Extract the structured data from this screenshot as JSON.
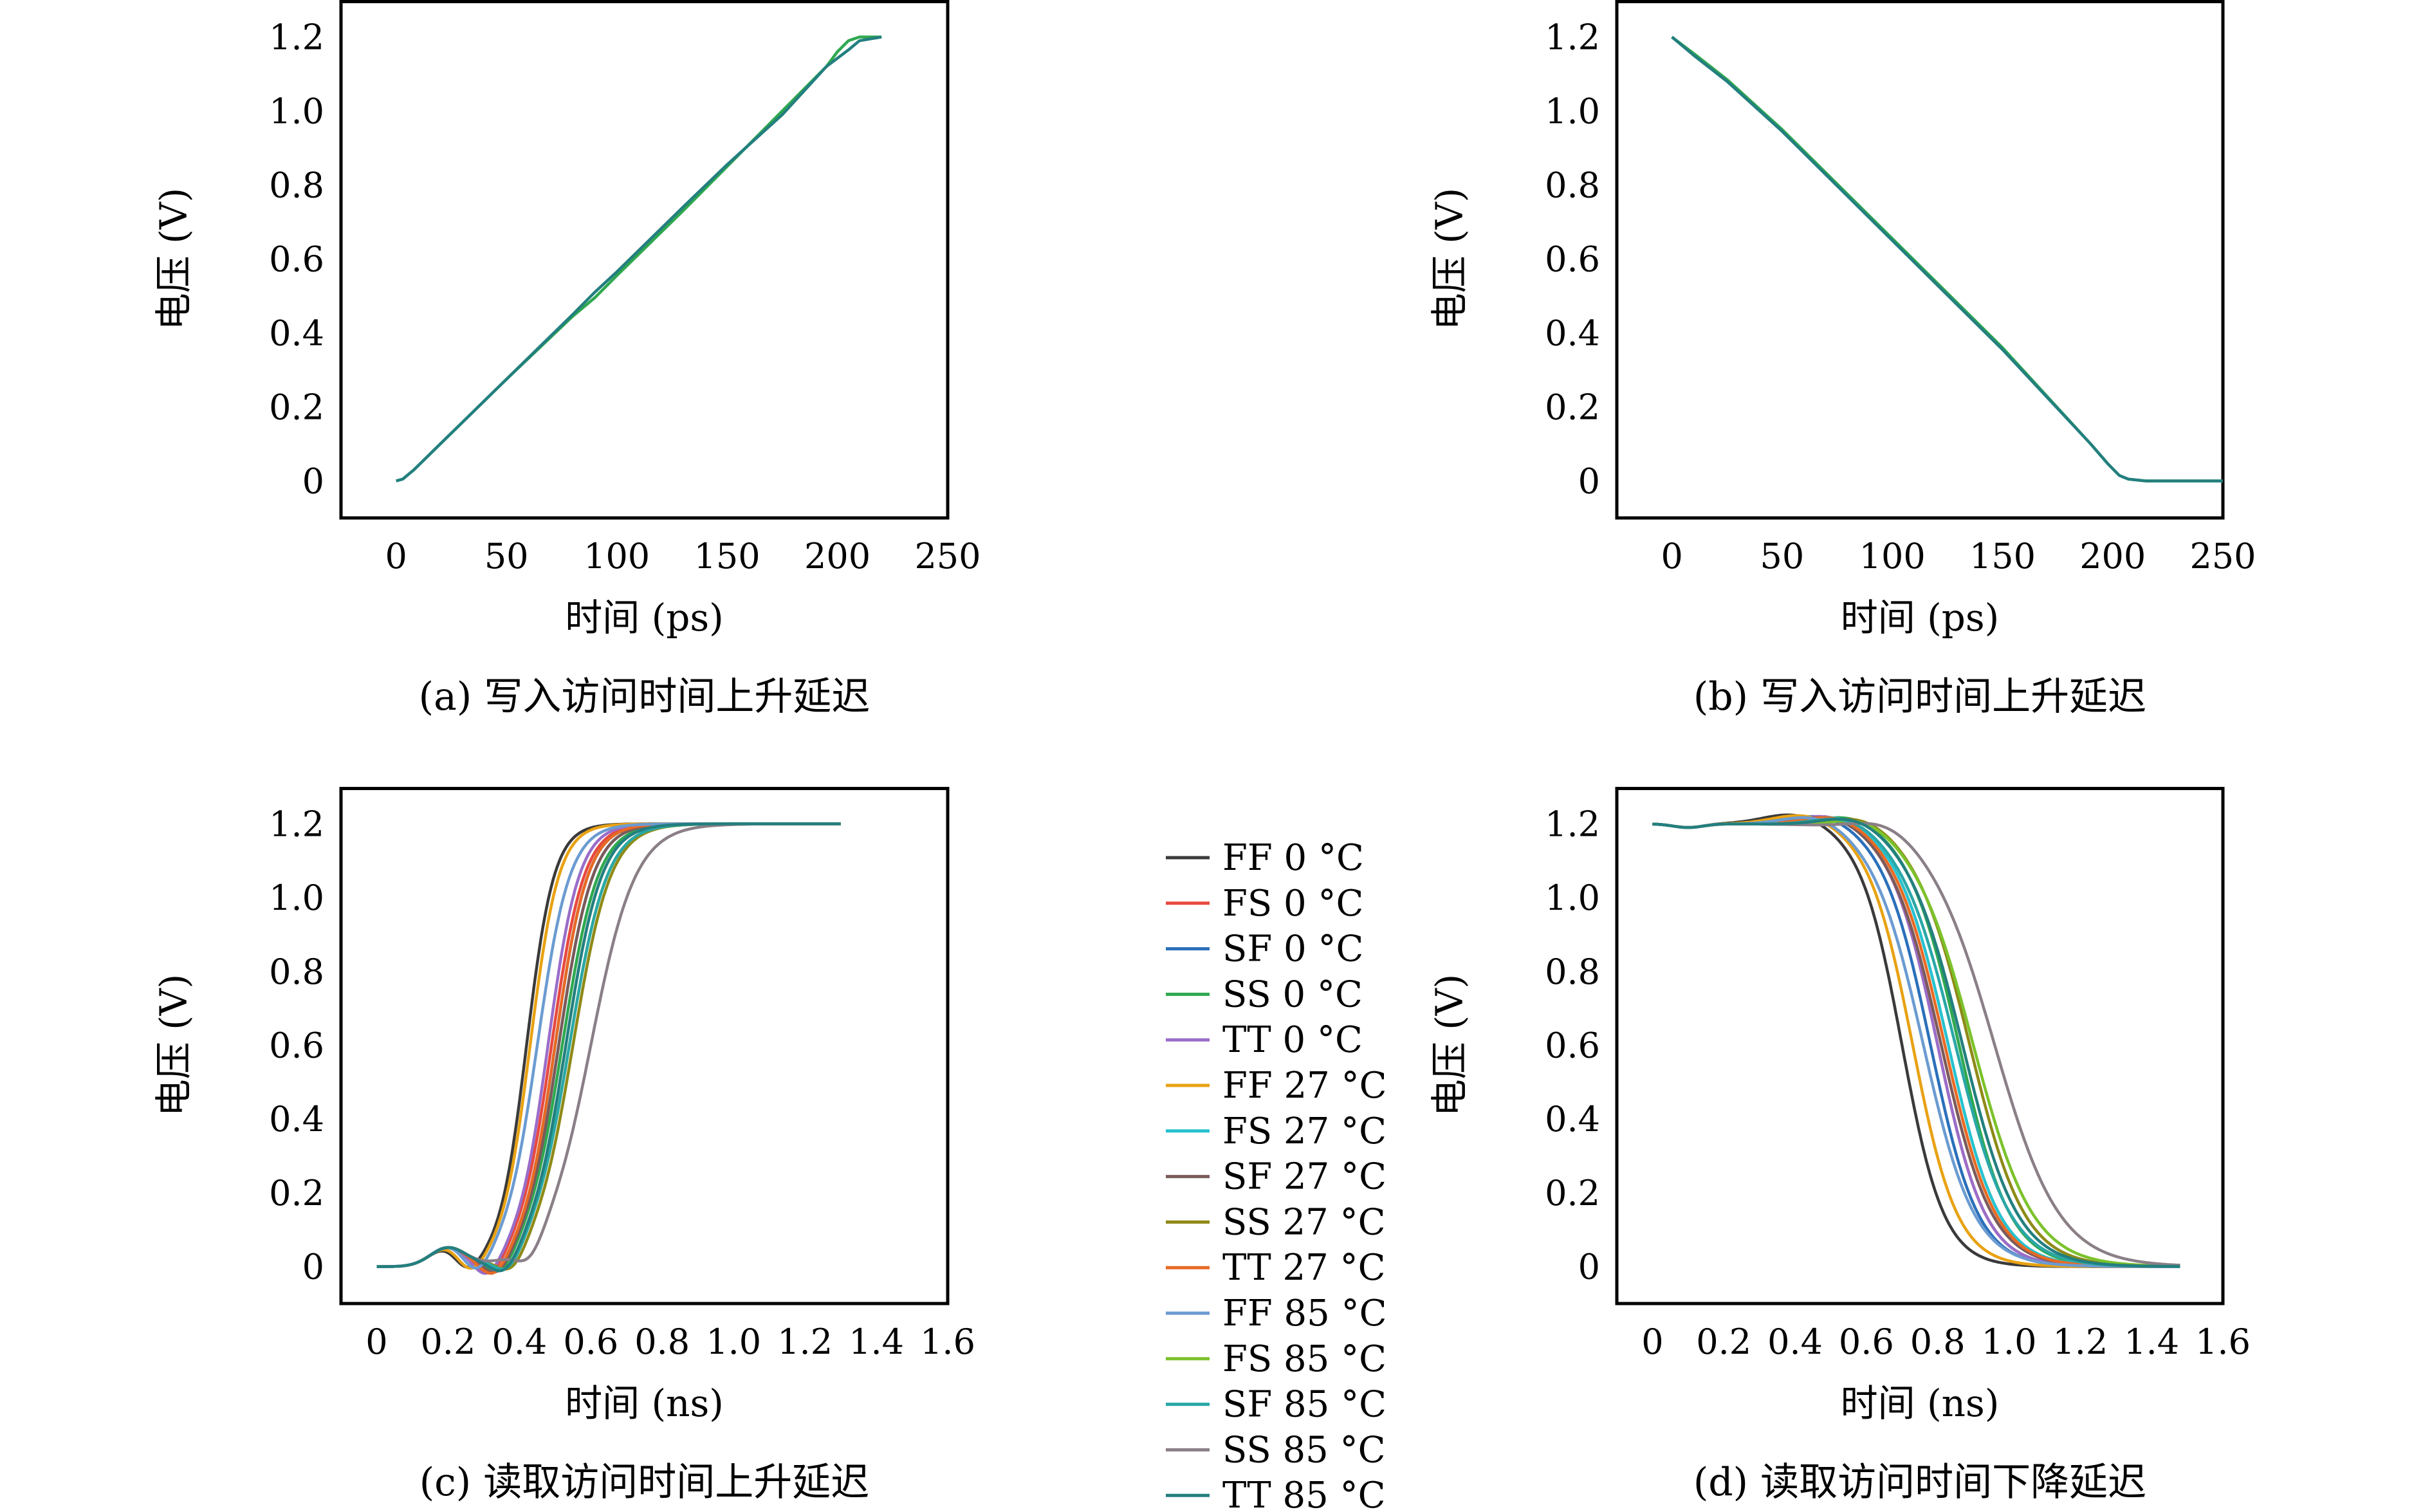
{
  "figure": {
    "legend_entries": [
      {
        "label": "FF 0 °C",
        "color": "#3a3a3a"
      },
      {
        "label": "FS 0 °C",
        "color": "#e8493f"
      },
      {
        "label": "SF 0 °C",
        "color": "#2b6fba"
      },
      {
        "label": "SS 0 °C",
        "color": "#2fa84f"
      },
      {
        "label": "TT 0 °C",
        "color": "#9a6dc9"
      },
      {
        "label": "FF 27 °C",
        "color": "#e8a213"
      },
      {
        "label": "FS 27 °C",
        "color": "#27c2cf"
      },
      {
        "label": "SF 27 °C",
        "color": "#7b5a5a"
      },
      {
        "label": "SS 27 °C",
        "color": "#8e8a18"
      },
      {
        "label": "TT 27 °C",
        "color": "#e86a24"
      },
      {
        "label": "FF 85 °C",
        "color": "#6b9bd1"
      },
      {
        "label": "FS 85 °C",
        "color": "#7cc22b"
      },
      {
        "label": "SF 85 °C",
        "color": "#2aa7a7"
      },
      {
        "label": "SS 85 °C",
        "color": "#8a7f87"
      },
      {
        "label": "TT 85 °C",
        "color": "#237f7f"
      }
    ]
  },
  "chart_data": [
    {
      "id": "a",
      "type": "line",
      "caption": "(a) 写入访问时间上升延迟",
      "xlabel": "时间 (ps)",
      "ylabel": "电压 (V)",
      "xlim": [
        -25,
        250
      ],
      "ylim": [
        -0.1,
        1.3
      ],
      "xticks": [
        0,
        50,
        100,
        150,
        200,
        250
      ],
      "xtick_labels": [
        "0",
        "50",
        "100",
        "150",
        "200",
        "250"
      ],
      "yticks": [
        0,
        0.2,
        0.4,
        0.6,
        0.8,
        1.0,
        1.2
      ],
      "ytick_labels": [
        "0",
        "0.2",
        "0.4",
        "0.6",
        "0.8",
        "1.0",
        "1.2"
      ],
      "series": [
        {
          "color": "#2fa84f",
          "x": [
            0,
            3,
            8,
            20,
            50,
            80,
            85,
            90,
            100,
            130,
            150,
            175,
            195,
            200,
            205,
            210,
            220
          ],
          "y": [
            0,
            0.005,
            0.03,
            0.1,
            0.275,
            0.445,
            0.47,
            0.495,
            0.555,
            0.73,
            0.85,
            1.0,
            1.12,
            1.16,
            1.19,
            1.2,
            1.2
          ]
        },
        {
          "color": "#237f7f",
          "x": [
            0,
            3,
            8,
            20,
            50,
            80,
            90,
            100,
            130,
            150,
            175,
            195,
            205,
            210,
            220
          ],
          "y": [
            0,
            0.005,
            0.03,
            0.1,
            0.275,
            0.45,
            0.51,
            0.565,
            0.74,
            0.855,
            0.99,
            1.12,
            1.165,
            1.19,
            1.2
          ]
        }
      ]
    },
    {
      "id": "b",
      "type": "line",
      "caption": "(b) 写入访问时间上升延迟",
      "xlabel": "时间 (ps)",
      "ylabel": "电压 (V)",
      "xlim": [
        -25,
        250
      ],
      "ylim": [
        -0.1,
        1.3
      ],
      "xticks": [
        0,
        50,
        100,
        150,
        200,
        250
      ],
      "xtick_labels": [
        "0",
        "50",
        "100",
        "150",
        "200",
        "250"
      ],
      "yticks": [
        0,
        0.2,
        0.4,
        0.6,
        0.8,
        1.0,
        1.2
      ],
      "ytick_labels": [
        "0",
        "0.2",
        "0.4",
        "0.6",
        "0.8",
        "1.0",
        "1.2"
      ],
      "series": [
        {
          "color": "#2fa84f",
          "x": [
            0,
            10,
            25,
            50,
            100,
            150,
            190,
            198,
            203,
            207,
            215,
            230,
            250
          ],
          "y": [
            1.2,
            1.155,
            1.085,
            0.95,
            0.655,
            0.36,
            0.1,
            0.045,
            0.015,
            0.005,
            0,
            0,
            0
          ]
        },
        {
          "color": "#237f7f",
          "x": [
            0,
            10,
            25,
            50,
            100,
            150,
            190,
            198,
            203,
            207,
            215,
            230,
            250
          ],
          "y": [
            1.2,
            1.15,
            1.08,
            0.945,
            0.65,
            0.355,
            0.1,
            0.045,
            0.015,
            0.005,
            0,
            0,
            0
          ]
        }
      ]
    },
    {
      "id": "c",
      "type": "line",
      "caption": "(c) 读取访问时间上升延迟",
      "xlabel": "时间 (ns)",
      "ylabel": "电压 (V)",
      "xlim": [
        -0.1,
        1.6
      ],
      "ylim": [
        -0.1,
        1.3
      ],
      "xticks": [
        0,
        0.2,
        0.4,
        0.6,
        0.8,
        1.0,
        1.2,
        1.4,
        1.6
      ],
      "xtick_labels": [
        "0",
        "0.2",
        "0.4",
        "0.6",
        "0.8",
        "1.0",
        "1.2",
        "1.4",
        "1.6"
      ],
      "yticks": [
        0,
        0.2,
        0.4,
        0.6,
        0.8,
        1.0,
        1.2
      ],
      "ytick_labels": [
        "0",
        "0.2",
        "0.4",
        "0.6",
        "0.8",
        "1.0",
        "1.2"
      ],
      "curve_model": "rising",
      "x_start": 0,
      "x_end": 1.3,
      "v_low": 0,
      "v_high": 1.2,
      "series": [
        {
          "name": "FF 0 °C",
          "color": "#3a3a3a",
          "t50": 0.42,
          "k": 26
        },
        {
          "name": "FS 0 °C",
          "color": "#e8493f",
          "t50": 0.49,
          "k": 22
        },
        {
          "name": "SF 0 °C",
          "color": "#2b6fba",
          "t50": 0.5,
          "k": 22
        },
        {
          "name": "SS 0 °C",
          "color": "#2fa84f",
          "t50": 0.52,
          "k": 20
        },
        {
          "name": "TT 0 °C",
          "color": "#9a6dc9",
          "t50": 0.48,
          "k": 23
        },
        {
          "name": "FF 27 °C",
          "color": "#e8a213",
          "t50": 0.43,
          "k": 25
        },
        {
          "name": "FS 27 °C",
          "color": "#27c2cf",
          "t50": 0.51,
          "k": 21
        },
        {
          "name": "SF 27 °C",
          "color": "#7b5a5a",
          "t50": 0.51,
          "k": 21
        },
        {
          "name": "SS 27 °C",
          "color": "#8e8a18",
          "t50": 0.55,
          "k": 19
        },
        {
          "name": "TT 27 °C",
          "color": "#e86a24",
          "t50": 0.5,
          "k": 22
        },
        {
          "name": "FF 85 °C",
          "color": "#6b9bd1",
          "t50": 0.45,
          "k": 22
        },
        {
          "name": "FS 85 °C",
          "color": "#7cc22b",
          "t50": 0.54,
          "k": 19
        },
        {
          "name": "SF 85 °C",
          "color": "#2aa7a7",
          "t50": 0.54,
          "k": 19
        },
        {
          "name": "SS 85 °C",
          "color": "#8a7f87",
          "t50": 0.6,
          "k": 16
        },
        {
          "name": "TT 85 °C",
          "color": "#237f7f",
          "t50": 0.53,
          "k": 20
        }
      ]
    },
    {
      "id": "d",
      "type": "line",
      "caption": "(d) 读取访问时间下降延迟",
      "xlabel": "时间 (ns)",
      "ylabel": "电压 (V)",
      "xlim": [
        -0.1,
        1.6
      ],
      "ylim": [
        -0.1,
        1.3
      ],
      "xticks": [
        0,
        0.2,
        0.4,
        0.6,
        0.8,
        1.0,
        1.2,
        1.4,
        1.6
      ],
      "xtick_labels": [
        "0",
        "0.2",
        "0.4",
        "0.6",
        "0.8",
        "1.0",
        "1.2",
        "1.4",
        "1.6"
      ],
      "yticks": [
        0,
        0.2,
        0.4,
        0.6,
        0.8,
        1.0,
        1.2
      ],
      "ytick_labels": [
        "0",
        "0.2",
        "0.4",
        "0.6",
        "0.8",
        "1.0",
        "1.2"
      ],
      "curve_model": "falling",
      "x_start": 0,
      "x_end": 1.48,
      "v_low": 0,
      "v_high": 1.2,
      "series": [
        {
          "name": "FF 0 °C",
          "color": "#3a3a3a",
          "t50": 0.7,
          "k": 17
        },
        {
          "name": "FS 0 °C",
          "color": "#e8493f",
          "t50": 0.8,
          "k": 15
        },
        {
          "name": "SF 0 °C",
          "color": "#2b6fba",
          "t50": 0.78,
          "k": 15
        },
        {
          "name": "SS 0 °C",
          "color": "#2fa84f",
          "t50": 0.86,
          "k": 14
        },
        {
          "name": "TT 0 °C",
          "color": "#9a6dc9",
          "t50": 0.8,
          "k": 15
        },
        {
          "name": "FF 27 °C",
          "color": "#e8a213",
          "t50": 0.73,
          "k": 16
        },
        {
          "name": "FS 27 °C",
          "color": "#27c2cf",
          "t50": 0.83,
          "k": 14
        },
        {
          "name": "SF 27 °C",
          "color": "#7b5a5a",
          "t50": 0.81,
          "k": 14
        },
        {
          "name": "SS 27 °C",
          "color": "#8e8a18",
          "t50": 0.89,
          "k": 13
        },
        {
          "name": "TT 27 °C",
          "color": "#e86a24",
          "t50": 0.82,
          "k": 14
        },
        {
          "name": "FF 85 °C",
          "color": "#6b9bd1",
          "t50": 0.76,
          "k": 14
        },
        {
          "name": "FS 85 °C",
          "color": "#7cc22b",
          "t50": 0.9,
          "k": 12
        },
        {
          "name": "SF 85 °C",
          "color": "#2aa7a7",
          "t50": 0.85,
          "k": 13
        },
        {
          "name": "SS 85 °C",
          "color": "#8a7f87",
          "t50": 0.96,
          "k": 11
        },
        {
          "name": "TT 85 °C",
          "color": "#237f7f",
          "t50": 0.87,
          "k": 13
        }
      ]
    }
  ]
}
